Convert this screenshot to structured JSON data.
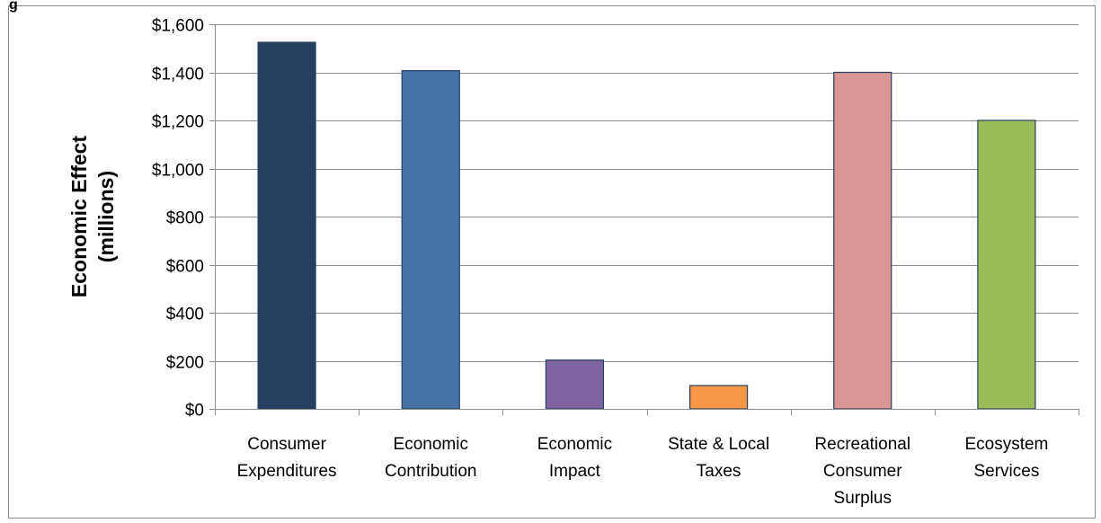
{
  "corner_text": "g",
  "chart_data": {
    "type": "bar",
    "categories": [
      [
        "Consumer",
        "Expenditures"
      ],
      [
        "Economic",
        "Contribution"
      ],
      [
        "Economic",
        "Impact"
      ],
      [
        "State & Local",
        "Taxes"
      ],
      [
        "Recreational",
        "Consumer",
        "Surplus"
      ],
      [
        "Ecosystem",
        "Services"
      ]
    ],
    "values": [
      1525,
      1407,
      203,
      97,
      1400,
      1200
    ],
    "colors": [
      "#243f60",
      "#4672a6",
      "#8064a2",
      "#f79646",
      "#d99694",
      "#9bbb59"
    ],
    "bar_stroke": "#243f60",
    "ylabel": [
      "Economic Effect",
      "(millions)"
    ],
    "ylim": [
      0,
      1600
    ],
    "yticks": [
      0,
      200,
      400,
      600,
      800,
      1000,
      1200,
      1400,
      1600
    ],
    "ytick_labels": [
      "$0",
      "$200",
      "$400",
      "$600",
      "$800",
      "$1,000",
      "$1,200",
      "$1,400",
      "$1,600"
    ],
    "grid": true,
    "legend": "none"
  }
}
